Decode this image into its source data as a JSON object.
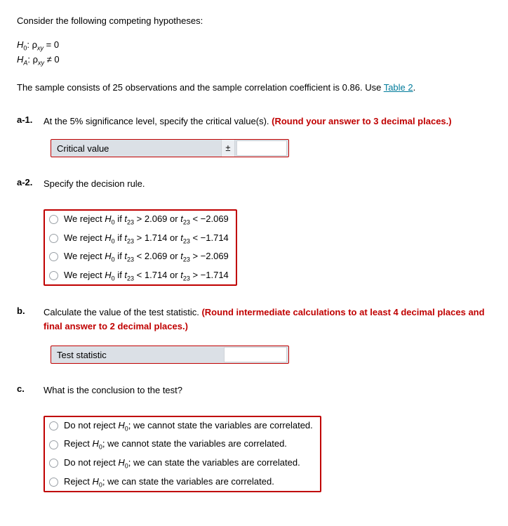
{
  "intro": "Consider the following competing hypotheses:",
  "hyp": {
    "h0_left": "H",
    "h0_sub": "0",
    "h0_mid": ": ρ",
    "h0_xy": "xy",
    "h0_right": " = 0",
    "ha_left": "H",
    "ha_sub": "A",
    "ha_mid": ": ρ",
    "ha_xy": "xy",
    "ha_right": " ≠ 0"
  },
  "context_pre": "The sample consists of 25 observations and the sample correlation coefficient is 0.86. Use ",
  "table_link": "Table 2",
  "context_post": ".",
  "parts": {
    "a1": {
      "num": "a-1.",
      "text_pre": "At the 5% significance level, specify the critical value(s). ",
      "text_red": "(Round your answer to 3 decimal places.)",
      "critical_label": "Critical value",
      "pm": "±"
    },
    "a2": {
      "num": "a-2.",
      "text": "Specify the decision rule.",
      "options": [
        {
          "pre": "We reject ",
          "hstub": "H",
          "hsub": "0",
          "mid": " if ",
          "t": "t",
          "tsub": "23",
          "cmp1": " > 2.069 or ",
          "t2": "t",
          "t2sub": "23",
          "cmp2": " < −2.069"
        },
        {
          "pre": "We reject ",
          "hstub": "H",
          "hsub": "0",
          "mid": " if ",
          "t": "t",
          "tsub": "23",
          "cmp1": " > 1.714 or ",
          "t2": "t",
          "t2sub": "23",
          "cmp2": " < −1.714"
        },
        {
          "pre": "We reject ",
          "hstub": "H",
          "hsub": "0",
          "mid": " if ",
          "t": "t",
          "tsub": "23",
          "cmp1": " < 2.069 or ",
          "t2": "t",
          "t2sub": "23",
          "cmp2": " > −2.069"
        },
        {
          "pre": "We reject ",
          "hstub": "H",
          "hsub": "0",
          "mid": " if ",
          "t": "t",
          "tsub": "23",
          "cmp1": " < 1.714 or ",
          "t2": "t",
          "t2sub": "23",
          "cmp2": " > −1.714"
        }
      ]
    },
    "b": {
      "num": "b.",
      "text_pre": "Calculate the value of the test statistic. ",
      "text_red": "(Round intermediate calculations to at least 4 decimal places and final answer to 2 decimal places.)",
      "teststat_label": "Test statistic"
    },
    "c": {
      "num": "c.",
      "text": "What is the conclusion to the test?",
      "options": [
        {
          "pre": "Do not reject ",
          "hstub": "H",
          "hsub": "0",
          "post": "; we cannot state the variables are correlated."
        },
        {
          "pre": "Reject ",
          "hstub": "H",
          "hsub": "0",
          "post": "; we cannot state the variables are correlated."
        },
        {
          "pre": "Do not reject ",
          "hstub": "H",
          "hsub": "0",
          "post": "; we can state the variables are correlated."
        },
        {
          "pre": "Reject ",
          "hstub": "H",
          "hsub": "0",
          "post": "; we can state the variables are correlated."
        }
      ]
    }
  }
}
